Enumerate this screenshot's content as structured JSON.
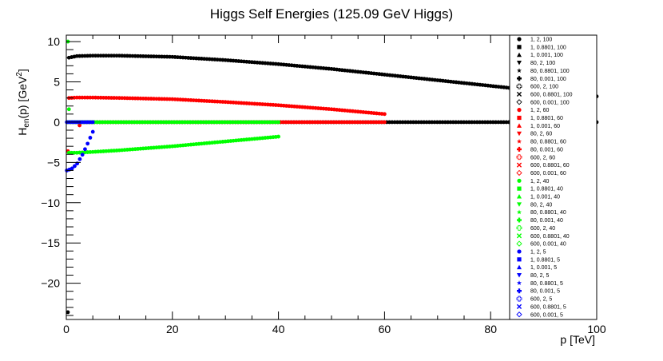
{
  "chart_data": {
    "type": "scatter",
    "title": "Higgs Self Energies (125.09 GeV Higgs)",
    "xlabel": "p [TeV]",
    "ylabel_main": "H",
    "ylabel_sub": "en",
    "ylabel_mid": "(p) [GeV",
    "ylabel_sup": "2",
    "ylabel_end": "]",
    "xlim": [
      0,
      100
    ],
    "ylim": [
      -24.5,
      10.8
    ],
    "xticks": [
      0,
      20,
      40,
      60,
      80,
      100
    ],
    "yticks": [
      10,
      5,
      0,
      -5,
      -10,
      -15,
      -20
    ],
    "xtick_labels": [
      "0",
      "20",
      "40",
      "60",
      "80",
      "100"
    ],
    "ytick_labels": [
      "10",
      "5",
      "0",
      "−5",
      "−10",
      "−15",
      "−20"
    ],
    "grid": false,
    "legend_position": "right",
    "colors": {
      "black": "#000000",
      "red": "#ff0000",
      "green": "#00ff00",
      "blue": "#0000ff"
    },
    "legend": [
      {
        "label": "1, 2, 100",
        "color": "#000000",
        "marker": "circle"
      },
      {
        "label": "1, 0.8801, 100",
        "color": "#000000",
        "marker": "square"
      },
      {
        "label": "1, 0.001, 100",
        "color": "#000000",
        "marker": "triangle-up"
      },
      {
        "label": "80, 2, 100",
        "color": "#000000",
        "marker": "triangle-down"
      },
      {
        "label": "80, 0.8801, 100",
        "color": "#000000",
        "marker": "star"
      },
      {
        "label": "80, 0.001, 100",
        "color": "#000000",
        "marker": "cross"
      },
      {
        "label": "600, 2, 100",
        "color": "#000000",
        "marker": "cross-open"
      },
      {
        "label": "600, 0.8801, 100",
        "color": "#000000",
        "marker": "x"
      },
      {
        "label": "600, 0.001, 100",
        "color": "#000000",
        "marker": "diamond-open"
      },
      {
        "label": "1, 2, 60",
        "color": "#ff0000",
        "marker": "circle"
      },
      {
        "label": "1, 0.8801, 60",
        "color": "#ff0000",
        "marker": "square"
      },
      {
        "label": "1, 0.001, 60",
        "color": "#ff0000",
        "marker": "triangle-up"
      },
      {
        "label": "80, 2, 60",
        "color": "#ff0000",
        "marker": "triangle-down"
      },
      {
        "label": "80, 0.8801, 60",
        "color": "#ff0000",
        "marker": "star"
      },
      {
        "label": "80, 0.001, 60",
        "color": "#ff0000",
        "marker": "cross"
      },
      {
        "label": "600, 2, 60",
        "color": "#ff0000",
        "marker": "cross-open"
      },
      {
        "label": "600, 0.8801, 60",
        "color": "#ff0000",
        "marker": "x"
      },
      {
        "label": "600, 0.001, 60",
        "color": "#ff0000",
        "marker": "diamond-open"
      },
      {
        "label": "1, 2, 40",
        "color": "#00ff00",
        "marker": "circle"
      },
      {
        "label": "1, 0.8801, 40",
        "color": "#00ff00",
        "marker": "square"
      },
      {
        "label": "1, 0.001, 40",
        "color": "#00ff00",
        "marker": "triangle-up"
      },
      {
        "label": "80, 2, 40",
        "color": "#00ff00",
        "marker": "triangle-down"
      },
      {
        "label": "80, 0.8801, 40",
        "color": "#00ff00",
        "marker": "star"
      },
      {
        "label": "80, 0.001, 40",
        "color": "#00ff00",
        "marker": "cross"
      },
      {
        "label": "600, 2, 40",
        "color": "#00ff00",
        "marker": "cross-open"
      },
      {
        "label": "600, 0.8801, 40",
        "color": "#00ff00",
        "marker": "x"
      },
      {
        "label": "600, 0.001, 40",
        "color": "#00ff00",
        "marker": "diamond-open"
      },
      {
        "label": "1, 2, 5",
        "color": "#0000ff",
        "marker": "circle"
      },
      {
        "label": "1, 0.8801, 5",
        "color": "#0000ff",
        "marker": "square"
      },
      {
        "label": "1, 0.001, 5",
        "color": "#0000ff",
        "marker": "triangle-up"
      },
      {
        "label": "80, 2, 5",
        "color": "#0000ff",
        "marker": "triangle-down"
      },
      {
        "label": "80, 0.8801, 5",
        "color": "#0000ff",
        "marker": "star"
      },
      {
        "label": "80, 0.001, 5",
        "color": "#0000ff",
        "marker": "cross"
      },
      {
        "label": "600, 2, 5",
        "color": "#0000ff",
        "marker": "cross-open"
      },
      {
        "label": "600, 0.8801, 5",
        "color": "#0000ff",
        "marker": "x"
      },
      {
        "label": "600, 0.001, 5",
        "color": "#0000ff",
        "marker": "diamond-open"
      }
    ],
    "series": [
      {
        "color": "#000000",
        "x": [
          0.5,
          2,
          5,
          10,
          20,
          30,
          40,
          50,
          60,
          70,
          80,
          90,
          100
        ],
        "y": [
          8.0,
          8.2,
          8.25,
          8.25,
          8.1,
          7.7,
          7.2,
          6.6,
          5.9,
          5.2,
          4.5,
          3.8,
          3.2
        ]
      },
      {
        "color": "#000000",
        "x": [
          0.3,
          100
        ],
        "y": [
          0.0,
          0.0
        ]
      },
      {
        "color": "#000000",
        "x": [
          0.3
        ],
        "y": [
          -23.6
        ]
      },
      {
        "color": "#ff0000",
        "x": [
          0.5,
          2,
          5,
          10,
          20,
          30,
          40,
          50,
          60
        ],
        "y": [
          3.0,
          3.05,
          3.05,
          3.0,
          2.85,
          2.5,
          2.1,
          1.6,
          1.0
        ]
      },
      {
        "color": "#ff0000",
        "x": [
          0.3,
          60
        ],
        "y": [
          0.0,
          0.0
        ]
      },
      {
        "color": "#ff0000",
        "x": [
          0.3
        ],
        "y": [
          -3.6
        ]
      },
      {
        "color": "#ff0000",
        "x": [
          2.5
        ],
        "y": [
          -0.4
        ]
      },
      {
        "color": "#00ff00",
        "x": [
          0.5,
          2,
          5,
          10,
          20,
          30,
          40
        ],
        "y": [
          -3.8,
          -3.8,
          -3.7,
          -3.5,
          -3.0,
          -2.4,
          -1.8
        ]
      },
      {
        "color": "#00ff00",
        "x": [
          0.3,
          40
        ],
        "y": [
          0.0,
          0.0
        ]
      },
      {
        "color": "#00ff00",
        "x": [
          0.3
        ],
        "y": [
          10.0
        ]
      },
      {
        "color": "#00ff00",
        "x": [
          0.5
        ],
        "y": [
          1.6
        ]
      },
      {
        "color": "#0000ff",
        "x": [
          0.1,
          1,
          2,
          3,
          4,
          5
        ],
        "y": [
          -6.0,
          -5.8,
          -5.2,
          -4.1,
          -2.7,
          -1.2
        ]
      },
      {
        "color": "#0000ff",
        "x": [
          0.1,
          5
        ],
        "y": [
          0.0,
          0.0
        ]
      }
    ]
  }
}
